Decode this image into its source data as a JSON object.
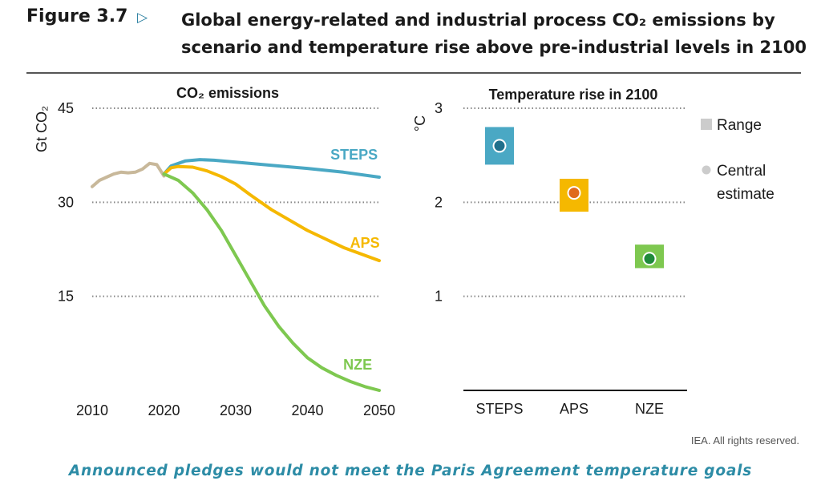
{
  "header": {
    "figure_label": "Figure 3.7",
    "title_line1": "Global energy-related and industrial process CO₂ emissions by",
    "title_line2": "scenario and temperature rise above pre-industrial levels in 2100"
  },
  "footer": {
    "credit": "IEA. All rights reserved.",
    "caption": "Announced pledges would not meet the Paris Agreement temperature goals"
  },
  "colors": {
    "STEPS": "#4aa8c4",
    "APS": "#f5b800",
    "NZE": "#7ec850",
    "history": "#c8b89a",
    "STEPS_dot": "#1f6f8b",
    "APS_dot": "#e06a1c",
    "NZE_dot": "#1f8a3a",
    "grid": "#888888",
    "legend_marker": "#cccccc"
  },
  "chart_data": [
    {
      "type": "line",
      "title": "CO₂ emissions",
      "ylabel": "Gt CO₂",
      "xlabel": "",
      "xlim": [
        2010,
        2050
      ],
      "ylim": [
        0,
        45
      ],
      "xticks": [
        "2010",
        "2020",
        "2030",
        "2040",
        "2050"
      ],
      "yticks": [
        "15",
        "30",
        "45"
      ],
      "grid": true,
      "series": [
        {
          "name": "",
          "key": "history",
          "x": [
            2010,
            2011,
            2012,
            2013,
            2014,
            2015,
            2016,
            2017,
            2018,
            2019,
            2020
          ],
          "y": [
            32.5,
            33.5,
            34,
            34.5,
            34.8,
            34.7,
            34.8,
            35.3,
            36.2,
            36.0,
            34.2
          ]
        },
        {
          "name": "STEPS",
          "key": "STEPS",
          "x": [
            2020,
            2021,
            2023,
            2025,
            2027,
            2030,
            2035,
            2040,
            2045,
            2050
          ],
          "y": [
            34.5,
            35.8,
            36.6,
            36.8,
            36.7,
            36.4,
            35.9,
            35.4,
            34.8,
            34.0
          ]
        },
        {
          "name": "APS",
          "key": "APS",
          "x": [
            2020,
            2021,
            2022,
            2024,
            2026,
            2028,
            2030,
            2032,
            2035,
            2040,
            2045,
            2050
          ],
          "y": [
            34.5,
            35.5,
            35.7,
            35.6,
            35.0,
            34.1,
            32.9,
            31.2,
            28.8,
            25.5,
            22.8,
            20.7
          ]
        },
        {
          "name": "NZE",
          "key": "NZE",
          "x": [
            2020,
            2022,
            2024,
            2026,
            2028,
            2030,
            2032,
            2034,
            2036,
            2038,
            2040,
            2042,
            2044,
            2046,
            2048,
            2050
          ],
          "y": [
            34.5,
            33.5,
            31.5,
            28.8,
            25.5,
            21.5,
            17.5,
            13.5,
            10.2,
            7.5,
            5.2,
            3.6,
            2.4,
            1.4,
            0.6,
            0.0
          ]
        }
      ]
    },
    {
      "type": "scatter",
      "title": "Temperature rise in 2100",
      "ylabel": "°C",
      "ylim": [
        0,
        3
      ],
      "yticks": [
        "1",
        "2",
        "3"
      ],
      "grid": true,
      "categories": [
        "STEPS",
        "APS",
        "NZE"
      ],
      "points": [
        {
          "name": "STEPS",
          "central": 2.6,
          "range": [
            2.4,
            2.8
          ]
        },
        {
          "name": "APS",
          "central": 2.1,
          "range": [
            1.9,
            2.25
          ]
        },
        {
          "name": "NZE",
          "central": 1.4,
          "range": [
            1.3,
            1.55
          ]
        }
      ],
      "legend": {
        "range": "Range",
        "central_line1": "Central",
        "central_line2": "estimate"
      },
      "legend_position": "right"
    }
  ]
}
